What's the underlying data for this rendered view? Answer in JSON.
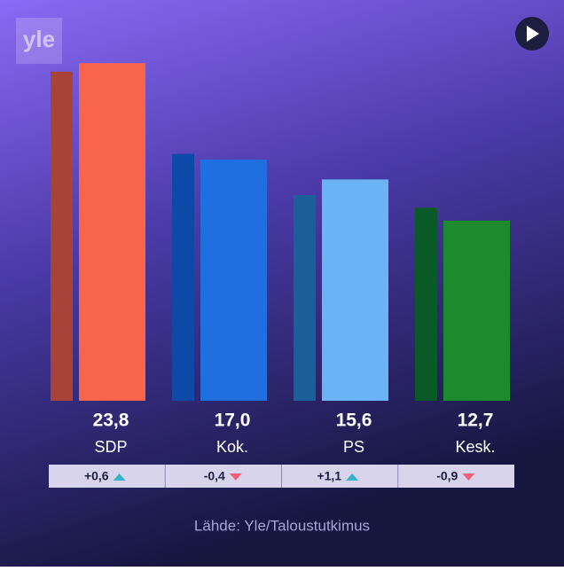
{
  "chart_data": {
    "type": "bar",
    "logo": "yle",
    "categories": [
      "SDP",
      "Kok.",
      "PS",
      "Kesk."
    ],
    "values": [
      23.8,
      17.0,
      15.6,
      12.7
    ],
    "value_labels": [
      "23,8",
      "17,0",
      "15,6",
      "12,7"
    ],
    "changes": [
      0.6,
      -0.4,
      1.1,
      -0.9
    ],
    "change_labels": [
      "+0,6",
      "-0,4",
      "+1,1",
      "-0,9"
    ],
    "colors": [
      "#f9644d",
      "#1f6fe0",
      "#6ab4f5",
      "#1e8a2e"
    ],
    "previous_colors": [
      "#a8433a",
      "#0d4aa8",
      "#1a5f9a",
      "#0a5a28"
    ],
    "source": "Lähde: Yle/Taloustutkimus"
  }
}
